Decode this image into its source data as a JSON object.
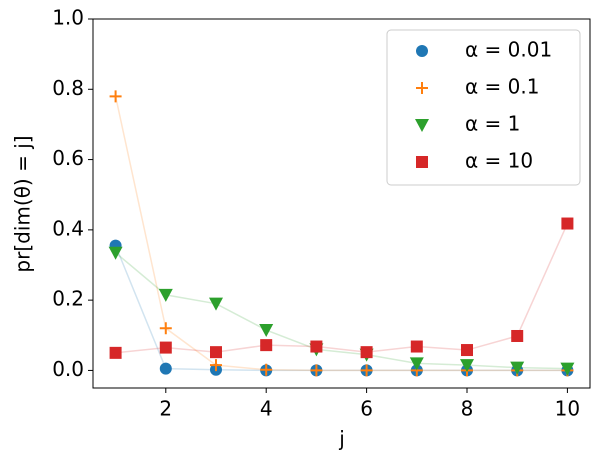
{
  "chart_data": {
    "type": "scatter",
    "xlabel": "j",
    "ylabel": "pr[dim(θ) = j]",
    "x": [
      1,
      2,
      3,
      4,
      5,
      6,
      7,
      8,
      9,
      10
    ],
    "xlim": [
      0.55,
      10.45
    ],
    "xticks": [
      2,
      4,
      6,
      8,
      10
    ],
    "ylim": [
      -0.05,
      1.0
    ],
    "yticks": [
      {
        "value": 0,
        "label": "0.0"
      },
      0.2,
      0.4,
      0.6,
      0.8,
      {
        "value": 1,
        "label": "1.0"
      }
    ],
    "legend": "upper right",
    "series": [
      {
        "name": "α = 0.01",
        "color": "#1f77b4",
        "marker": "o",
        "values": [
          0.355,
          0.005,
          0.002,
          0,
          0,
          0,
          0,
          0,
          0,
          0
        ]
      },
      {
        "name": "α = 0.1",
        "color": "#ff7f0e",
        "marker": "+",
        "values": [
          0.78,
          0.12,
          0.015,
          0.002,
          0,
          0,
          0,
          0,
          0,
          0
        ]
      },
      {
        "name": "α = 1",
        "color": "#2ca02c",
        "marker": "v",
        "values": [
          0.335,
          0.215,
          0.19,
          0.115,
          0.06,
          0.045,
          0.02,
          0.015,
          0.008,
          0.005
        ]
      },
      {
        "name": "α = 10",
        "color": "#d62728",
        "marker": "s",
        "values": [
          0.05,
          0.065,
          0.052,
          0.072,
          0.068,
          0.052,
          0.068,
          0.058,
          0.098,
          0.418
        ]
      }
    ]
  }
}
